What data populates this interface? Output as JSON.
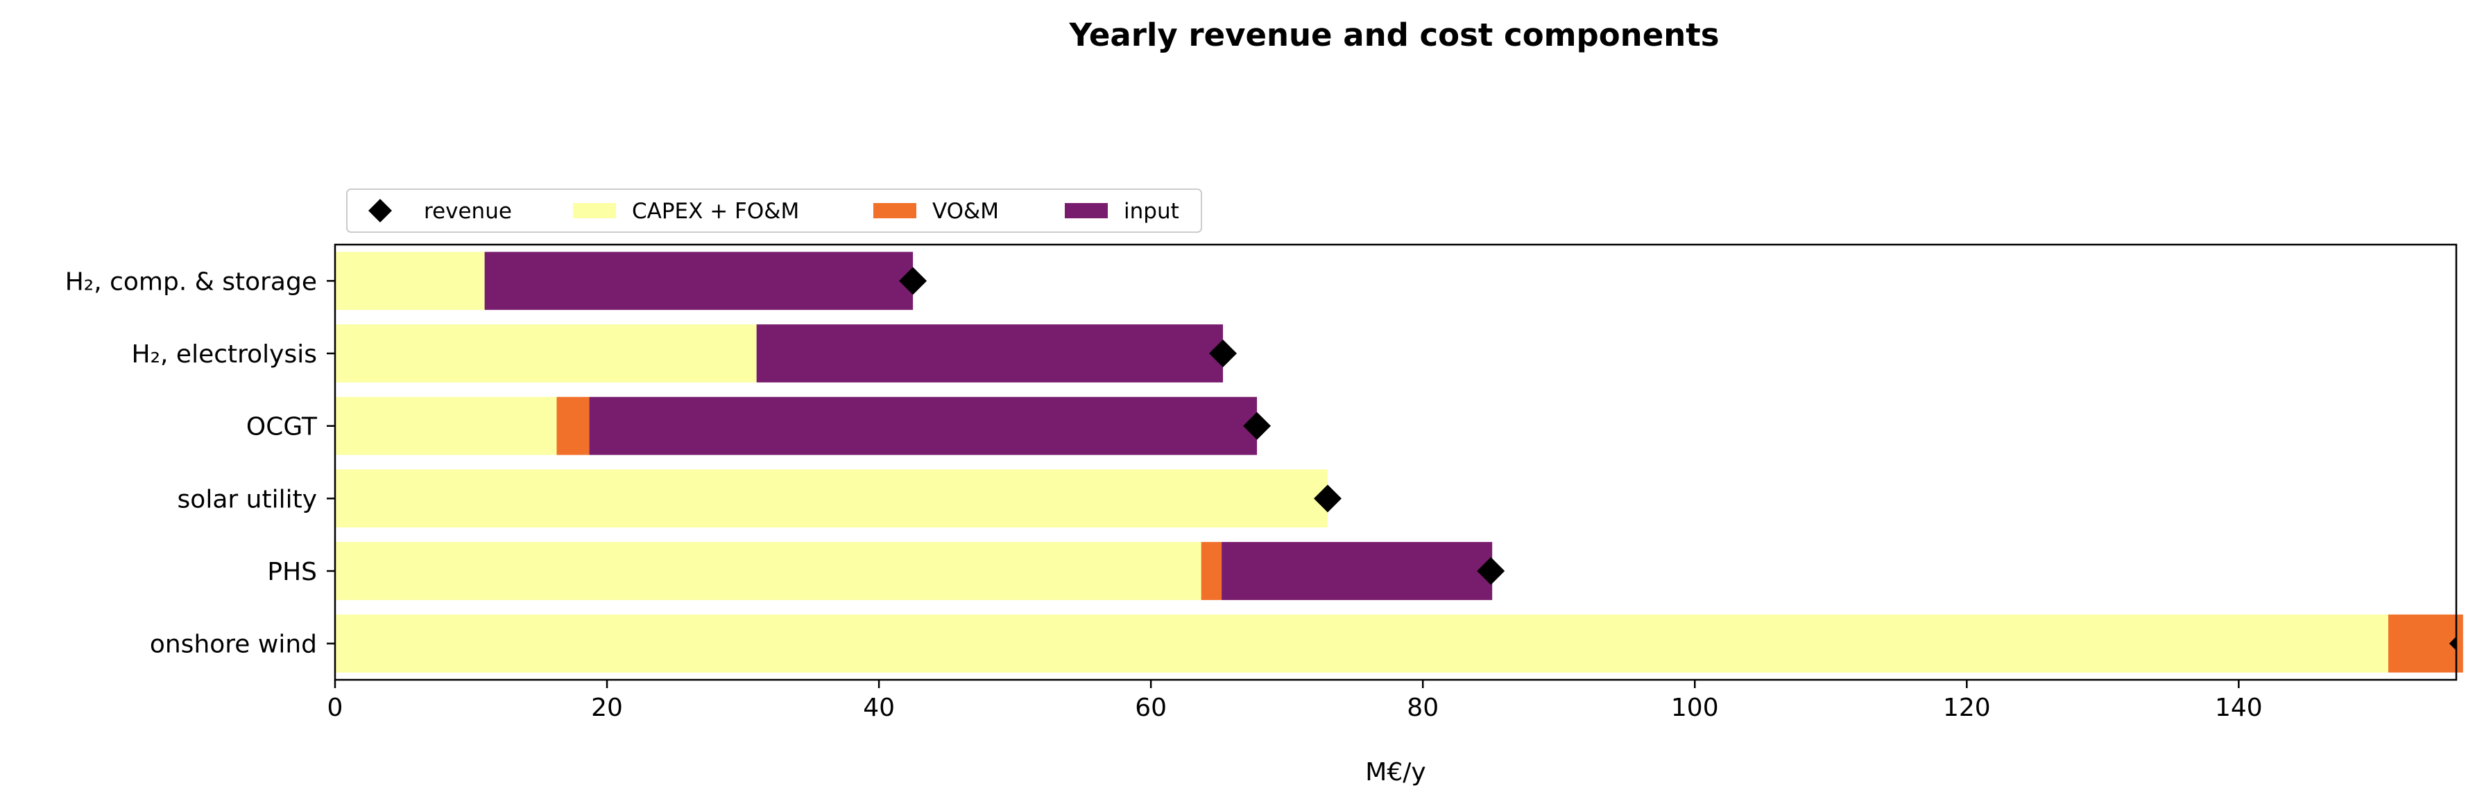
{
  "chart_data": {
    "type": "bar",
    "orientation": "horizontal",
    "stacked": true,
    "title": "Yearly revenue and cost components",
    "xlabel": "M€/y",
    "ylabel": "",
    "xlim": [
      0,
      156
    ],
    "x_ticks": [
      0,
      20,
      40,
      60,
      80,
      100,
      120,
      140
    ],
    "categories": [
      "H₂, comp. & storage",
      "H₂, electrolysis",
      "OCGT",
      "solar utility",
      "PHS",
      "onshore wind"
    ],
    "series": [
      {
        "name": "CAPEX + FO&M",
        "color": "#fcffa4",
        "values": [
          11,
          31,
          16.3,
          73,
          63.7,
          151
        ]
      },
      {
        "name": "VO&M",
        "color": "#f1702a",
        "values": [
          0,
          0,
          2.4,
          0,
          1.5,
          5.5
        ]
      },
      {
        "name": "input",
        "color": "#781c6d",
        "values": [
          31.5,
          34.3,
          49.1,
          0,
          19.9,
          0
        ]
      }
    ],
    "revenue": {
      "name": "revenue",
      "color": "#000000",
      "marker": "diamond",
      "values": [
        42.5,
        65.3,
        67.8,
        73,
        85,
        156.5
      ]
    },
    "legend_position": "top-left, above axes",
    "grid": false
  }
}
